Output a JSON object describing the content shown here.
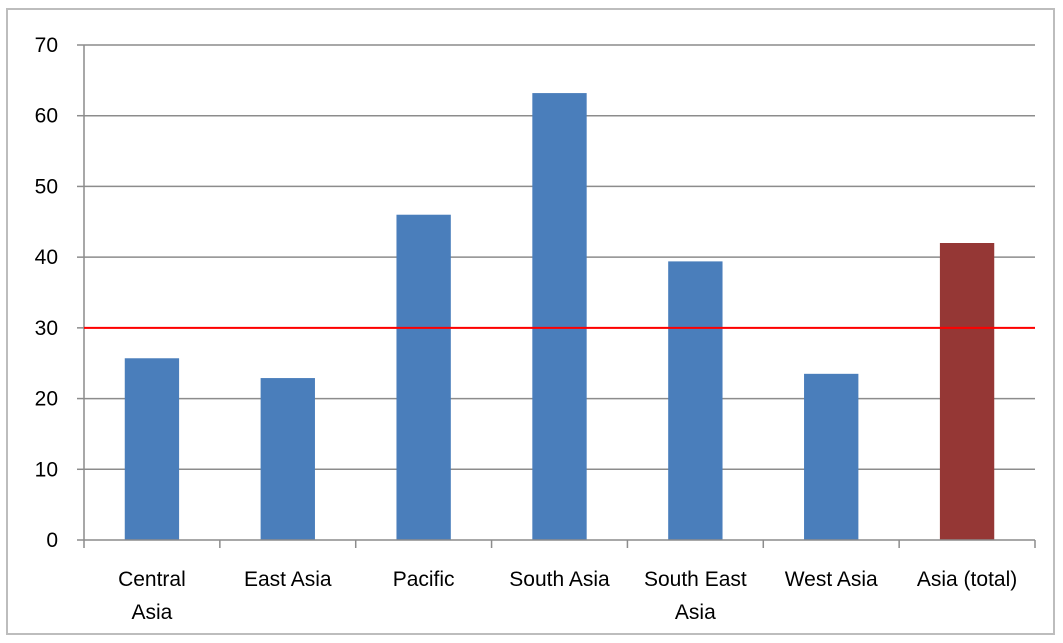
{
  "chart_data": {
    "type": "bar",
    "title": "",
    "xlabel": "",
    "ylabel": "",
    "categories": [
      [
        "Central",
        "Asia"
      ],
      [
        "East Asia"
      ],
      [
        "Pacific"
      ],
      [
        "South Asia"
      ],
      [
        "South East",
        "Asia"
      ],
      [
        "West Asia"
      ],
      [
        "Asia (total)"
      ]
    ],
    "values": [
      25.7,
      22.9,
      46.0,
      63.2,
      39.4,
      23.5,
      42.0
    ],
    "bar_colors": [
      "#4a7ebb",
      "#4a7ebb",
      "#4a7ebb",
      "#4a7ebb",
      "#4a7ebb",
      "#4a7ebb",
      "#953735"
    ],
    "ylim": [
      0,
      70
    ],
    "yticks": [
      0,
      10,
      20,
      30,
      40,
      50,
      60,
      70
    ],
    "grid": true,
    "gridline_color": "#8c8c8c",
    "reference_line": {
      "value": 30,
      "color": "#ff0000"
    },
    "legend": "none"
  }
}
